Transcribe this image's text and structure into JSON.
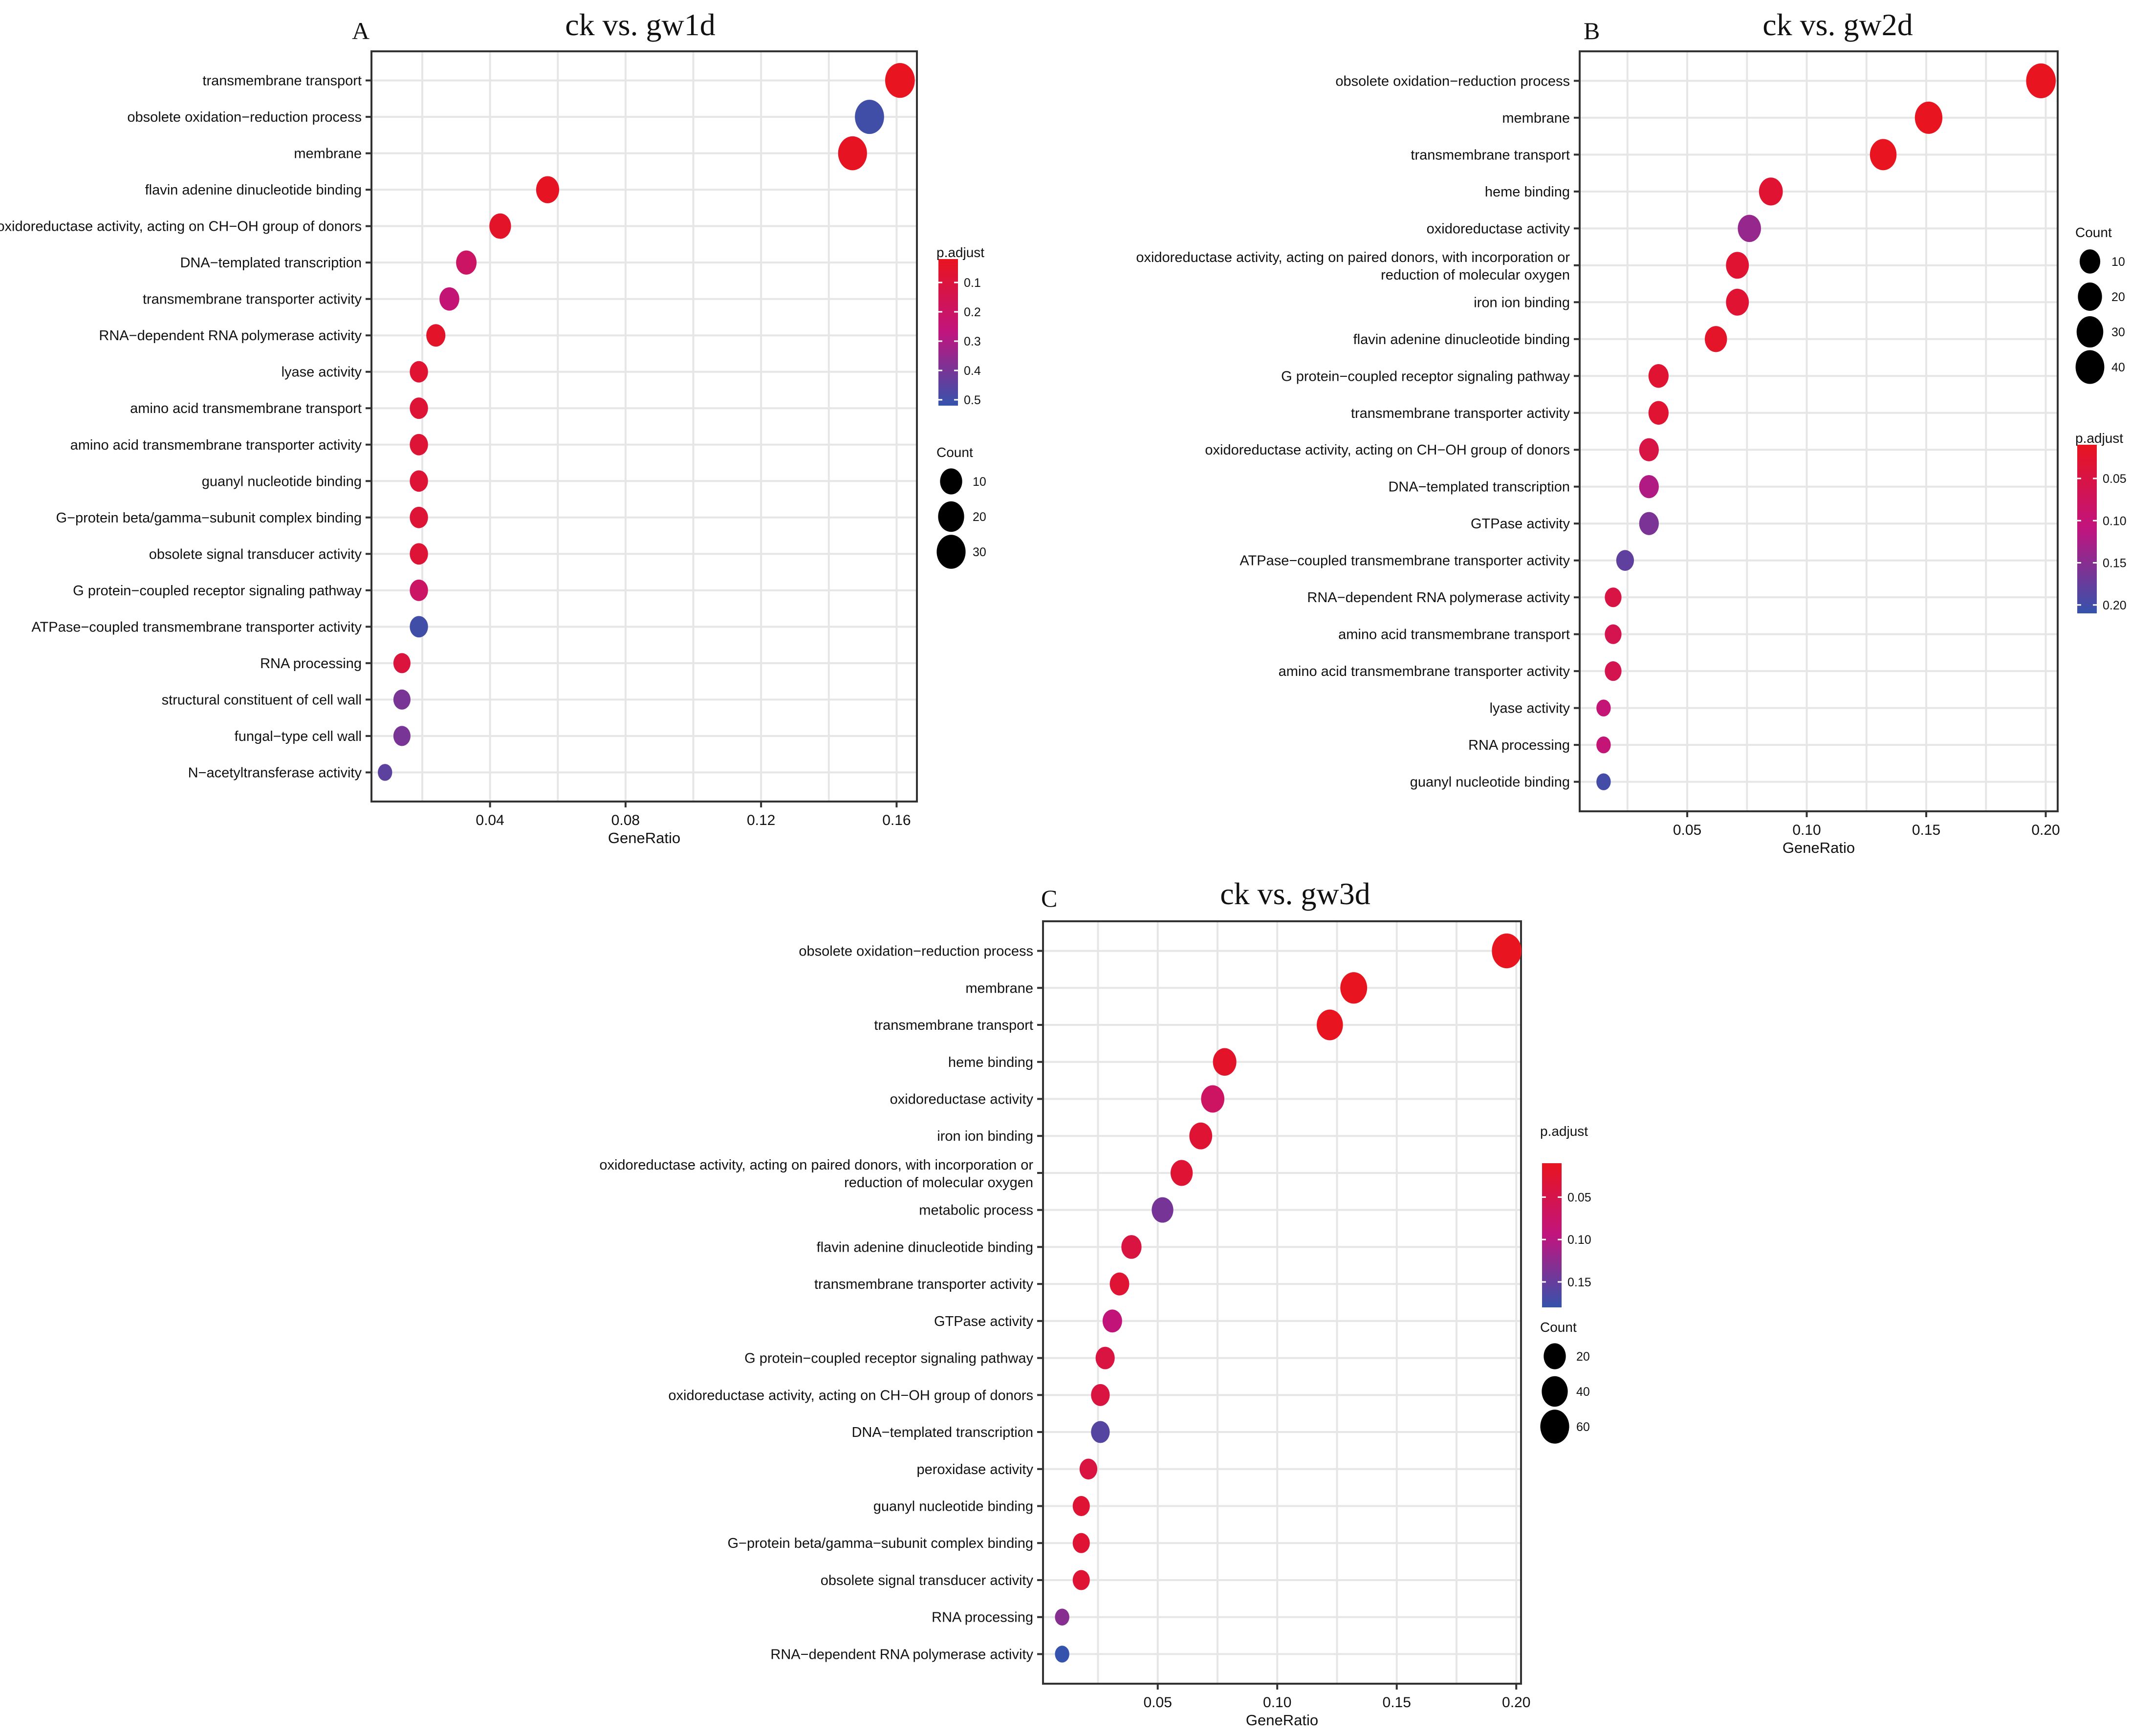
{
  "colors": {
    "low_padj": "#e8141f",
    "mid_padj": "#c0147e",
    "high_padj": "#3553ac",
    "grid": "#e6e6e6",
    "frame": "#333333",
    "text": "#111111"
  },
  "chart_data": [
    {
      "type": "scatter",
      "panel": "A",
      "title": "ck vs. gw1d",
      "xlabel": "GeneRatio",
      "ylabel": "",
      "xlim": [
        0.005,
        0.166
      ],
      "xticks": [
        0.04,
        0.08,
        0.12,
        0.16
      ],
      "xtick_labels": [
        "0.04",
        "0.08",
        "0.12",
        "0.16"
      ],
      "points": [
        {
          "term": "transmembrane transport",
          "gene_ratio": 0.161,
          "count": 33,
          "p_adjust": 0.02
        },
        {
          "term": "obsolete oxidation−reduction process",
          "gene_ratio": 0.152,
          "count": 31,
          "p_adjust": 0.5
        },
        {
          "term": "membrane",
          "gene_ratio": 0.147,
          "count": 30,
          "p_adjust": 0.03
        },
        {
          "term": "flavin adenine dinucleotide binding",
          "gene_ratio": 0.057,
          "count": 12,
          "p_adjust": 0.03
        },
        {
          "term": "oxidoreductase activity, acting on CH−OH group of donors",
          "gene_ratio": 0.043,
          "count": 9,
          "p_adjust": 0.05
        },
        {
          "term": "DNA−templated transcription",
          "gene_ratio": 0.033,
          "count": 7,
          "p_adjust": 0.2
        },
        {
          "term": "transmembrane transporter activity",
          "gene_ratio": 0.028,
          "count": 6,
          "p_adjust": 0.25
        },
        {
          "term": "RNA−dependent RNA polymerase activity",
          "gene_ratio": 0.024,
          "count": 5,
          "p_adjust": 0.05
        },
        {
          "term": "lyase activity",
          "gene_ratio": 0.019,
          "count": 4,
          "p_adjust": 0.07
        },
        {
          "term": "amino acid transmembrane transport",
          "gene_ratio": 0.019,
          "count": 4,
          "p_adjust": 0.08
        },
        {
          "term": "amino acid transmembrane transporter activity",
          "gene_ratio": 0.019,
          "count": 4,
          "p_adjust": 0.08
        },
        {
          "term": "guanyl nucleotide binding",
          "gene_ratio": 0.019,
          "count": 4,
          "p_adjust": 0.08
        },
        {
          "term": "G−protein beta/gamma−subunit complex binding",
          "gene_ratio": 0.019,
          "count": 4,
          "p_adjust": 0.08
        },
        {
          "term": "obsolete signal transducer activity",
          "gene_ratio": 0.019,
          "count": 4,
          "p_adjust": 0.08
        },
        {
          "term": "G protein−coupled receptor signaling pathway",
          "gene_ratio": 0.019,
          "count": 4,
          "p_adjust": 0.2
        },
        {
          "term": "ATPase−coupled transmembrane transporter activity",
          "gene_ratio": 0.019,
          "count": 4,
          "p_adjust": 0.5
        },
        {
          "term": "RNA processing",
          "gene_ratio": 0.014,
          "count": 3,
          "p_adjust": 0.1
        },
        {
          "term": "structural constituent of cell wall",
          "gene_ratio": 0.014,
          "count": 3,
          "p_adjust": 0.4
        },
        {
          "term": "fungal−type cell wall",
          "gene_ratio": 0.014,
          "count": 3,
          "p_adjust": 0.4
        },
        {
          "term": "N−acetyltransferase activity",
          "gene_ratio": 0.009,
          "count": 2,
          "p_adjust": 0.45
        }
      ],
      "color_legend": {
        "title": "p.adjust",
        "min": 0.02,
        "max": 0.52,
        "ticks": [
          0.1,
          0.2,
          0.3,
          0.4,
          0.5
        ],
        "tick_labels": [
          "0.1",
          "0.2",
          "0.3",
          "0.4",
          "0.5"
        ]
      },
      "size_legend": {
        "title": "Count",
        "values": [
          10,
          20,
          30
        ],
        "labels": [
          "10",
          "20",
          "30"
        ],
        "count_min": 2,
        "count_max": 33
      },
      "legend_order": [
        "color",
        "size"
      ]
    },
    {
      "type": "scatter",
      "panel": "B",
      "title": "ck vs. gw2d",
      "xlabel": "GeneRatio",
      "ylabel": "",
      "xlim": [
        0.005,
        0.205
      ],
      "xticks": [
        0.05,
        0.1,
        0.15,
        0.2
      ],
      "xtick_labels": [
        "0.05",
        "0.10",
        "0.15",
        "0.20"
      ],
      "points": [
        {
          "term": "obsolete oxidation−reduction process",
          "gene_ratio": 0.198,
          "count": 45,
          "p_adjust": 0.01
        },
        {
          "term": "membrane",
          "gene_ratio": 0.151,
          "count": 34,
          "p_adjust": 0.01
        },
        {
          "term": "transmembrane transport",
          "gene_ratio": 0.132,
          "count": 30,
          "p_adjust": 0.01
        },
        {
          "term": "heme binding",
          "gene_ratio": 0.085,
          "count": 19,
          "p_adjust": 0.03
        },
        {
          "term": "oxidoreductase activity",
          "gene_ratio": 0.076,
          "count": 17,
          "p_adjust": 0.14
        },
        {
          "term": "oxidoreductase activity, acting on paired donors, with incorporation or\nreduction of molecular oxygen",
          "gene_ratio": 0.071,
          "count": 16,
          "p_adjust": 0.03
        },
        {
          "term": "iron ion binding",
          "gene_ratio": 0.071,
          "count": 16,
          "p_adjust": 0.03
        },
        {
          "term": "flavin adenine dinucleotide binding",
          "gene_ratio": 0.062,
          "count": 14,
          "p_adjust": 0.02
        },
        {
          "term": "G protein−coupled receptor signaling pathway",
          "gene_ratio": 0.038,
          "count": 9,
          "p_adjust": 0.03
        },
        {
          "term": "transmembrane transporter activity",
          "gene_ratio": 0.038,
          "count": 9,
          "p_adjust": 0.03
        },
        {
          "term": "oxidoreductase activity, acting on CH−OH group of donors",
          "gene_ratio": 0.034,
          "count": 8,
          "p_adjust": 0.05
        },
        {
          "term": "DNA−templated transcription",
          "gene_ratio": 0.034,
          "count": 8,
          "p_adjust": 0.12
        },
        {
          "term": "GTPase activity",
          "gene_ratio": 0.034,
          "count": 8,
          "p_adjust": 0.16
        },
        {
          "term": "ATPase−coupled transmembrane transporter activity",
          "gene_ratio": 0.024,
          "count": 5,
          "p_adjust": 0.18
        },
        {
          "term": "RNA−dependent RNA polymerase activity",
          "gene_ratio": 0.019,
          "count": 4,
          "p_adjust": 0.05
        },
        {
          "term": "amino acid transmembrane transport",
          "gene_ratio": 0.019,
          "count": 4,
          "p_adjust": 0.06
        },
        {
          "term": "amino acid transmembrane transporter activity",
          "gene_ratio": 0.019,
          "count": 4,
          "p_adjust": 0.06
        },
        {
          "term": "lyase activity",
          "gene_ratio": 0.015,
          "count": 3,
          "p_adjust": 0.1
        },
        {
          "term": "RNA processing",
          "gene_ratio": 0.015,
          "count": 3,
          "p_adjust": 0.1
        },
        {
          "term": "guanyl nucleotide binding",
          "gene_ratio": 0.015,
          "count": 3,
          "p_adjust": 0.2
        }
      ],
      "color_legend": {
        "title": "p.adjust",
        "min": 0.01,
        "max": 0.21,
        "ticks": [
          0.05,
          0.1,
          0.15,
          0.2
        ],
        "tick_labels": [
          "0.05",
          "0.10",
          "0.15",
          "0.20"
        ]
      },
      "size_legend": {
        "title": "Count",
        "values": [
          10,
          20,
          30,
          40
        ],
        "labels": [
          "10",
          "20",
          "30",
          "40"
        ],
        "count_min": 3,
        "count_max": 45
      },
      "legend_order": [
        "size",
        "color"
      ]
    },
    {
      "type": "scatter",
      "panel": "C",
      "title": "ck vs. gw3d",
      "xlabel": "GeneRatio",
      "ylabel": "",
      "xlim": [
        0.002,
        0.202
      ],
      "xticks": [
        0.05,
        0.1,
        0.15,
        0.2
      ],
      "xtick_labels": [
        "0.05",
        "0.10",
        "0.15",
        "0.20"
      ],
      "points": [
        {
          "term": "obsolete oxidation−reduction process",
          "gene_ratio": 0.196,
          "count": 66,
          "p_adjust": 0.01
        },
        {
          "term": "membrane",
          "gene_ratio": 0.132,
          "count": 45,
          "p_adjust": 0.01
        },
        {
          "term": "transmembrane transport",
          "gene_ratio": 0.122,
          "count": 41,
          "p_adjust": 0.01
        },
        {
          "term": "heme binding",
          "gene_ratio": 0.078,
          "count": 26,
          "p_adjust": 0.02
        },
        {
          "term": "oxidoreductase activity",
          "gene_ratio": 0.073,
          "count": 25,
          "p_adjust": 0.07
        },
        {
          "term": "iron ion binding",
          "gene_ratio": 0.068,
          "count": 23,
          "p_adjust": 0.03
        },
        {
          "term": "oxidoreductase activity, acting on paired donors, with incorporation or\nreduction of molecular oxygen",
          "gene_ratio": 0.06,
          "count": 20,
          "p_adjust": 0.03
        },
        {
          "term": "metabolic process",
          "gene_ratio": 0.052,
          "count": 18,
          "p_adjust": 0.14
        },
        {
          "term": "flavin adenine dinucleotide binding",
          "gene_ratio": 0.039,
          "count": 13,
          "p_adjust": 0.04
        },
        {
          "term": "transmembrane transporter activity",
          "gene_ratio": 0.034,
          "count": 11,
          "p_adjust": 0.03
        },
        {
          "term": "GTPase activity",
          "gene_ratio": 0.031,
          "count": 11,
          "p_adjust": 0.09
        },
        {
          "term": "G protein−coupled receptor signaling pathway",
          "gene_ratio": 0.028,
          "count": 10,
          "p_adjust": 0.04
        },
        {
          "term": "oxidoreductase activity, acting on CH−OH group of donors",
          "gene_ratio": 0.026,
          "count": 9,
          "p_adjust": 0.04
        },
        {
          "term": "DNA−templated transcription",
          "gene_ratio": 0.026,
          "count": 9,
          "p_adjust": 0.16
        },
        {
          "term": "peroxidase activity",
          "gene_ratio": 0.021,
          "count": 7,
          "p_adjust": 0.04
        },
        {
          "term": "guanyl nucleotide binding",
          "gene_ratio": 0.018,
          "count": 6,
          "p_adjust": 0.03
        },
        {
          "term": "G−protein beta/gamma−subunit complex binding",
          "gene_ratio": 0.018,
          "count": 6,
          "p_adjust": 0.03
        },
        {
          "term": "obsolete signal transducer activity",
          "gene_ratio": 0.018,
          "count": 6,
          "p_adjust": 0.03
        },
        {
          "term": "RNA processing",
          "gene_ratio": 0.01,
          "count": 4,
          "p_adjust": 0.13
        },
        {
          "term": "RNA−dependent RNA polymerase activity",
          "gene_ratio": 0.01,
          "count": 4,
          "p_adjust": 0.18
        }
      ],
      "color_legend": {
        "title": "p.adjust",
        "min": 0.01,
        "max": 0.18,
        "ticks": [
          0.05,
          0.1,
          0.15
        ],
        "tick_labels": [
          "0.05",
          "0.10",
          "0.15"
        ]
      },
      "size_legend": {
        "title": "Count",
        "values": [
          20,
          40,
          60
        ],
        "labels": [
          "20",
          "40",
          "60"
        ],
        "count_min": 4,
        "count_max": 66
      },
      "legend_order": [
        "color",
        "size"
      ]
    }
  ]
}
